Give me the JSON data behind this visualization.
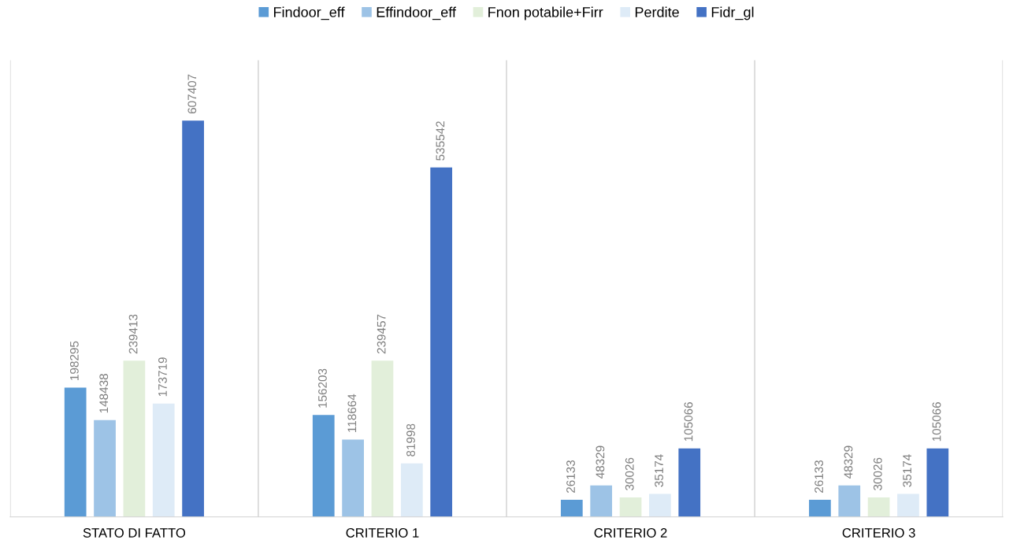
{
  "chart_data": {
    "type": "bar",
    "categories": [
      "STATO DI FATTO",
      "CRITERIO 1",
      "CRITERIO 2",
      "CRITERIO 3"
    ],
    "series": [
      {
        "name": "Findoor_eff",
        "color": "#5b9bd5",
        "values": [
          198295,
          156203,
          26133,
          26133
        ]
      },
      {
        "name": "Effindoor_eff",
        "color": "#9dc3e6",
        "values": [
          148438,
          118664,
          48329,
          48329
        ]
      },
      {
        "name": "Fnon potabile+Firr",
        "color": "#e2efda",
        "values": [
          239413,
          239457,
          30026,
          30026
        ]
      },
      {
        "name": "Perdite",
        "color": "#deebf7",
        "values": [
          173719,
          81998,
          35174,
          35174
        ]
      },
      {
        "name": "Fidr_gl",
        "color": "#4472c4",
        "values": [
          607407,
          535542,
          105066,
          105066
        ]
      }
    ],
    "ylim": [
      0,
      700000
    ],
    "data_labels": true,
    "legend": "top",
    "grid": false,
    "tick_labels": "x"
  }
}
